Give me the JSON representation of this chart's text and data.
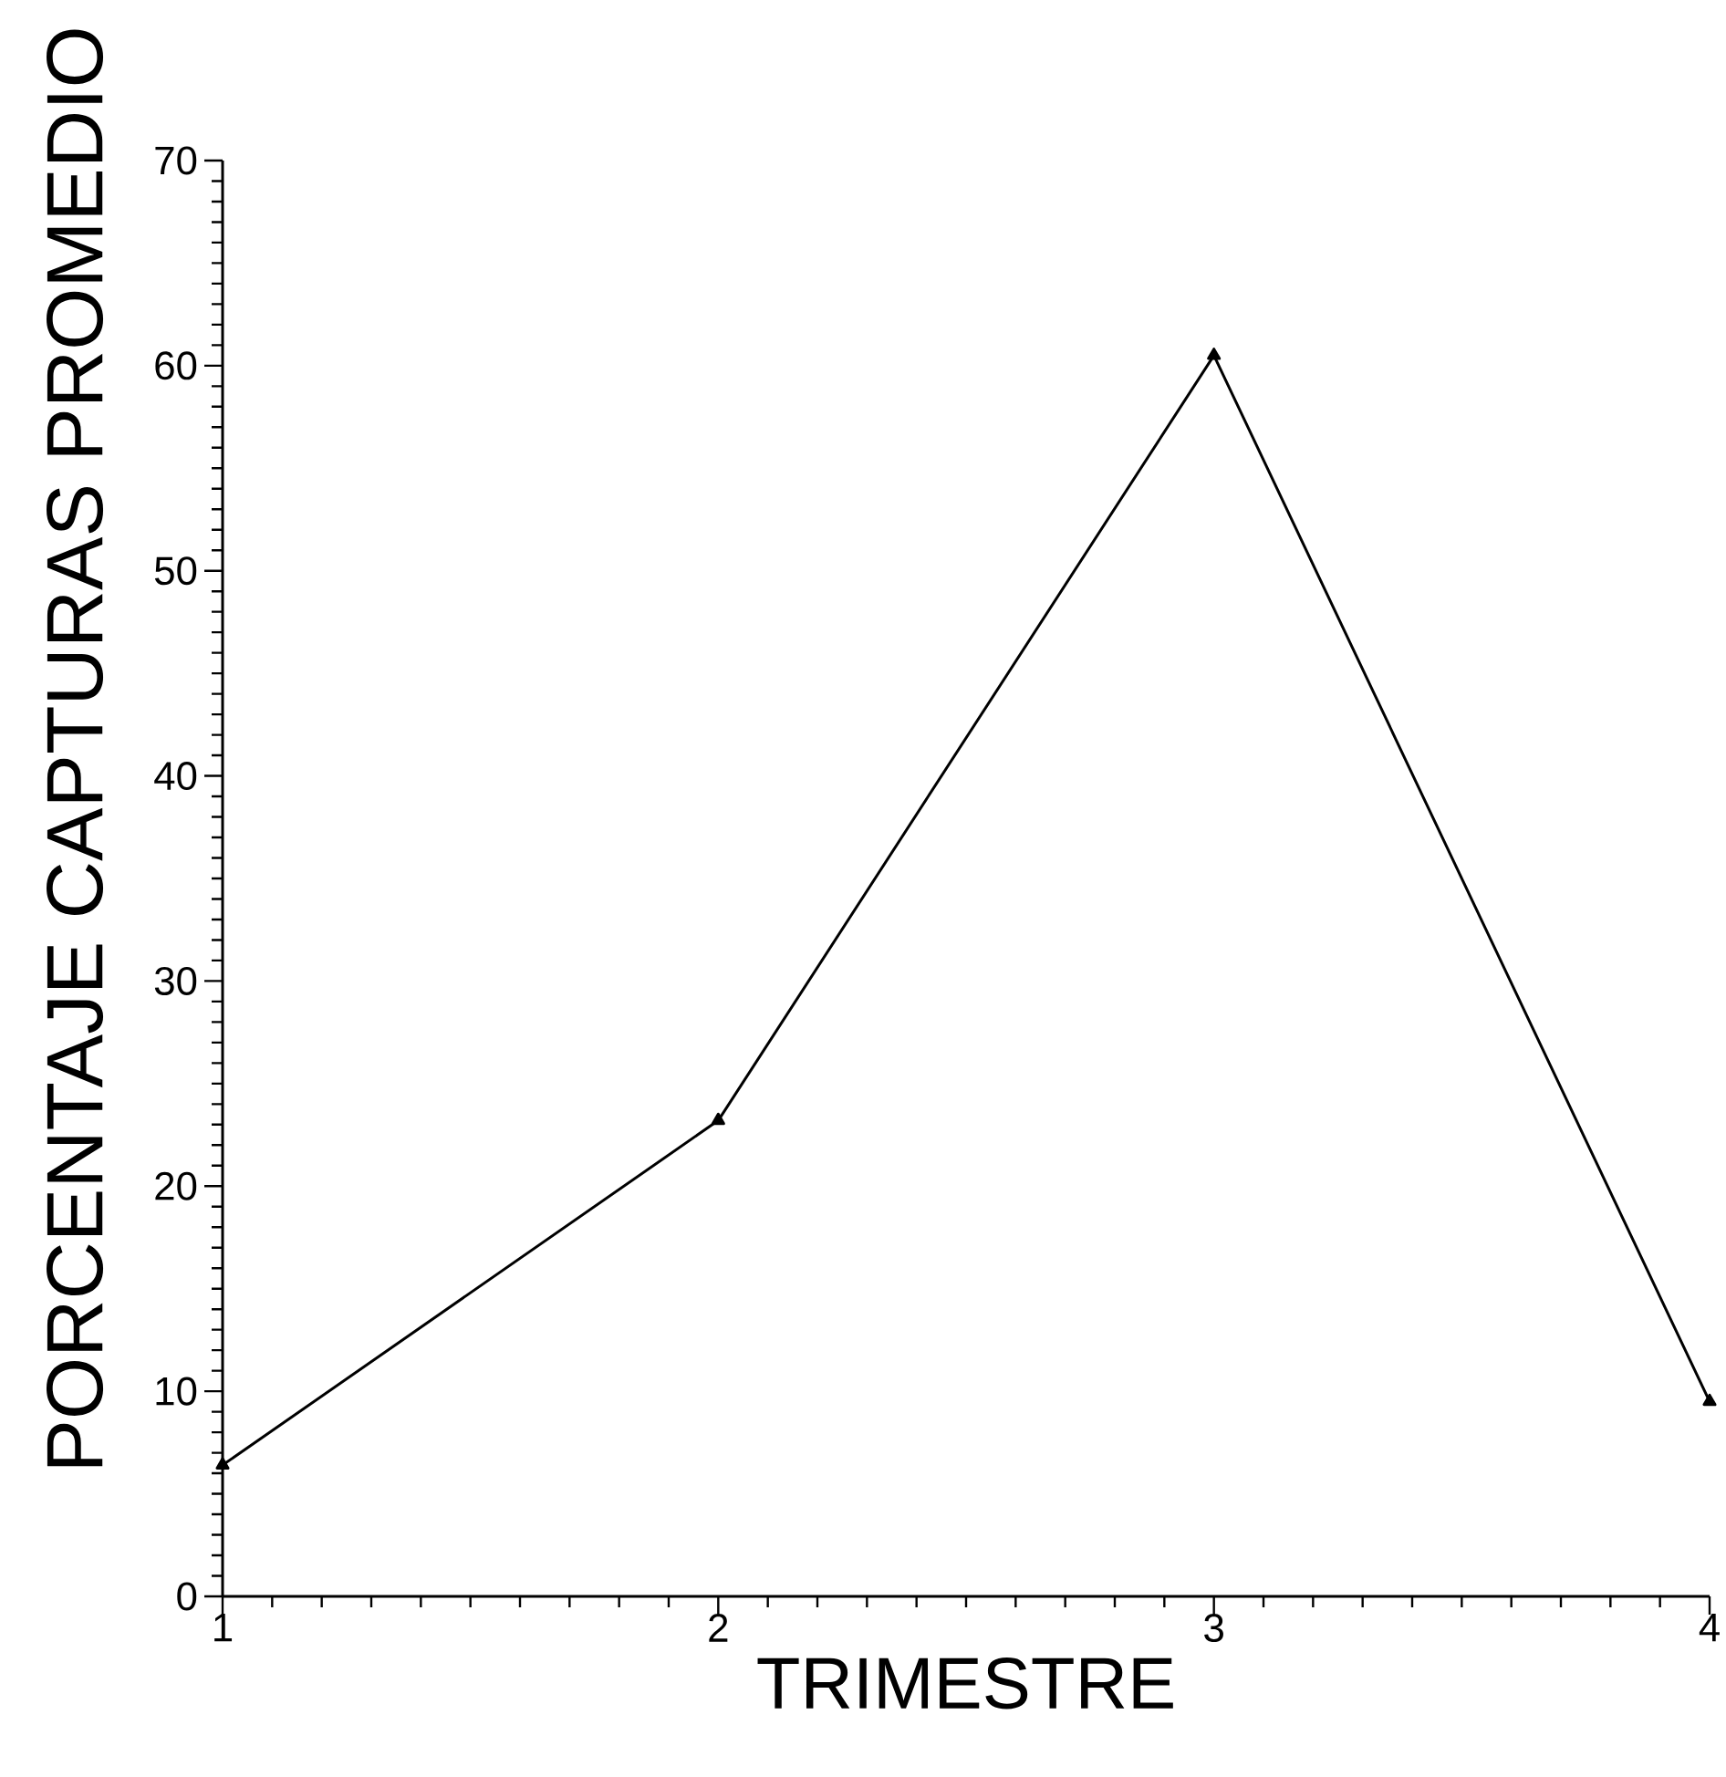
{
  "chart_data": {
    "type": "line",
    "xlabel": "TRIMESTRE",
    "ylabel": "PORCENTAJE CAPTURAS PROMEDIO",
    "x": [
      1,
      2,
      3,
      4
    ],
    "series": [
      {
        "color": "#000000",
        "values": [
          6.4,
          23.2,
          60.5,
          9.5
        ]
      }
    ],
    "xlim": [
      1,
      4
    ],
    "ylim": [
      0,
      70
    ],
    "xticks": [
      1,
      2,
      3,
      4
    ],
    "yticks": [
      0,
      10,
      20,
      30,
      40,
      50,
      60,
      70
    ],
    "marker": "triangle",
    "line_style": "solid"
  }
}
